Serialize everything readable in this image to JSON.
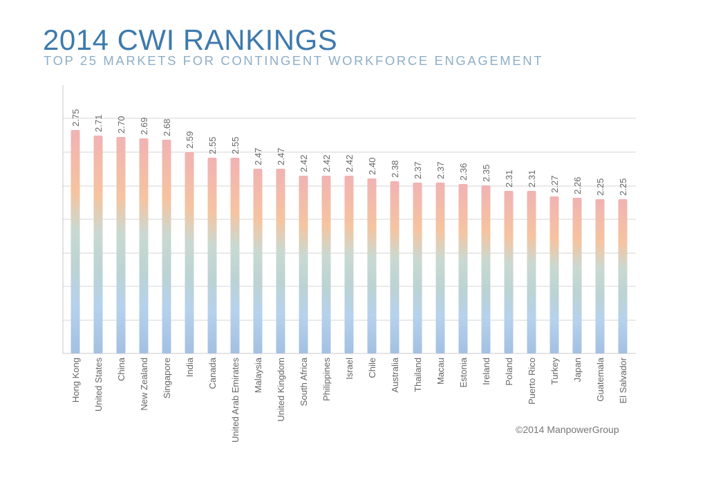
{
  "header": {
    "title": "2014 CWI RANKINGS",
    "subtitle": "TOP 25 MARKETS FOR CONTINGENT WORKFORCE ENGAGEMENT"
  },
  "footer": {
    "copyright": "©2014 ManpowerGroup"
  },
  "colors": {
    "title": "#3d7aad",
    "subtitle": "#8eaec8",
    "bar_top": "#f0b3b3",
    "bar_mid_warm": "#f5c4a0",
    "bar_mid_cool": "#c5d9d3",
    "bar_bottom": "#a9c7e8"
  },
  "chart_data": {
    "type": "bar",
    "title": "2014 CWI RANKINGS",
    "subtitle": "TOP 25 MARKETS FOR CONTINGENT WORKFORCE ENGAGEMENT",
    "xlabel": "",
    "ylabel": "",
    "grid": true,
    "categories": [
      "Hong Kong",
      "United States",
      "China",
      "New Zealand",
      "Singapore",
      "India",
      "Canada",
      "United Arab Emirates",
      "Malaysia",
      "United Kingdom",
      "South Africa",
      "Philippines",
      "Israel",
      "Chile",
      "Australia",
      "Thailand",
      "Macau",
      "Estonia",
      "Ireland",
      "Poland",
      "Puerto Rico",
      "Turkey",
      "Japan",
      "Guatemala",
      "El Salvador"
    ],
    "values": [
      2.75,
      2.71,
      2.7,
      2.69,
      2.68,
      2.59,
      2.55,
      2.55,
      2.47,
      2.47,
      2.42,
      2.42,
      2.42,
      2.4,
      2.38,
      2.37,
      2.37,
      2.36,
      2.35,
      2.31,
      2.31,
      2.27,
      2.26,
      2.25,
      2.25
    ],
    "value_labels": [
      "2.75",
      "2.71",
      "2.70",
      "2.69",
      "2.68",
      "2.59",
      "2.55",
      "2.55",
      "2.47",
      "2.47",
      "2.42",
      "2.42",
      "2.42",
      "2.40",
      "2.38",
      "2.37",
      "2.37",
      "2.36",
      "2.35",
      "2.31",
      "2.31",
      "2.27",
      "2.26",
      "2.25",
      "2.25"
    ]
  }
}
